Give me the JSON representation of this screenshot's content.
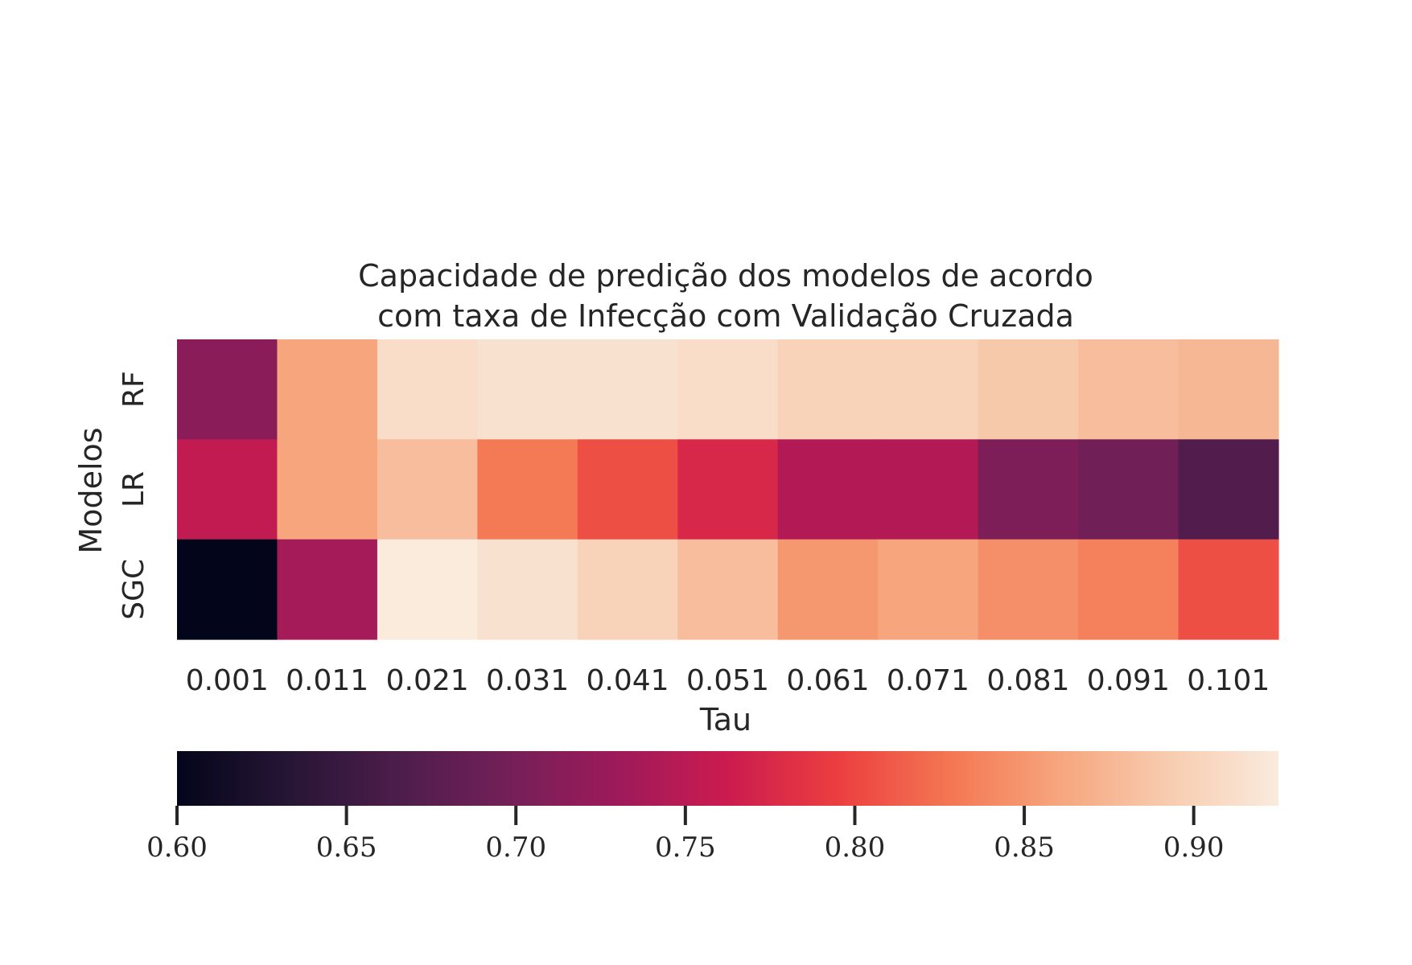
{
  "chart_data": {
    "type": "heatmap",
    "title": "Capacidade de predição dos modelos de acordo\ncom taxa de Infecção com Validação Cruzada",
    "title_lines": [
      "Capacidade de predição dos modelos de acordo",
      "com taxa de Infecção com Validação Cruzada"
    ],
    "xlabel": "Tau",
    "ylabel": "Modelos",
    "x": [
      "0.001",
      "0.011",
      "0.021",
      "0.031",
      "0.041",
      "0.051",
      "0.061",
      "0.071",
      "0.081",
      "0.091",
      "0.101"
    ],
    "y": [
      "RF",
      "LR",
      "SGC"
    ],
    "values": [
      [
        0.715,
        0.86,
        0.91,
        0.915,
        0.915,
        0.91,
        0.9,
        0.9,
        0.89,
        0.88,
        0.875
      ],
      [
        0.755,
        0.86,
        0.88,
        0.83,
        0.805,
        0.775,
        0.745,
        0.745,
        0.705,
        0.695,
        0.67
      ],
      [
        0.6,
        0.735,
        0.925,
        0.915,
        0.9,
        0.88,
        0.85,
        0.86,
        0.845,
        0.835,
        0.805
      ]
    ],
    "colorbar": {
      "position": "bottom",
      "range": [
        0.6,
        0.925
      ],
      "ticks": [
        "0.60",
        "0.65",
        "0.70",
        "0.75",
        "0.80",
        "0.85",
        "0.90"
      ],
      "colormap": "rocket"
    },
    "grid": false
  }
}
